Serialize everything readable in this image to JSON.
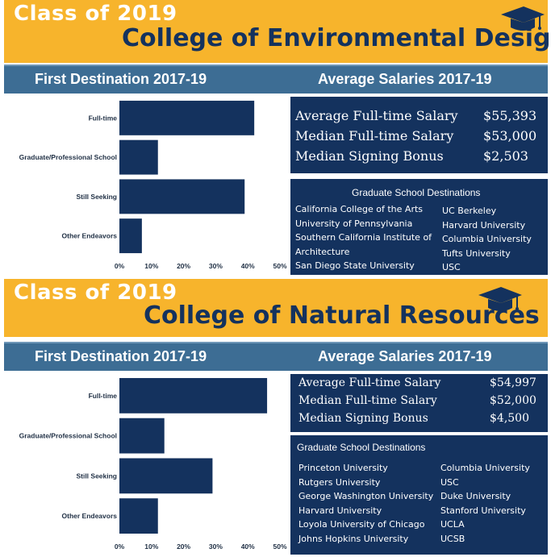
{
  "colors": {
    "banner": "#f7b42c",
    "header": "#3d6d94",
    "navy": "#14325e",
    "white": "#ffffff"
  },
  "panels": [
    {
      "class_of": "Class of 2019",
      "college": "College of Environmental Design",
      "first_destination_title": "First Destination 2017-19",
      "salaries_title": "Average Salaries 2017-19",
      "salaries": [
        {
          "label": "Average Full-time Salary",
          "value": "$55,393"
        },
        {
          "label": "Median Full-time Salary",
          "value": "$53,000"
        },
        {
          "label": "Median Signing Bonus",
          "value": "$2,503"
        }
      ],
      "grad_title": "Graduate School Destinations",
      "grad_col1": [
        "California College of the Arts",
        "University of  Pennsylvania",
        "Southern California Institute of",
        "Architecture",
        "San Diego State University"
      ],
      "grad_col2": [
        "UC Berkeley",
        "Harvard University",
        "Columbia University",
        "Tufts University",
        "USC"
      ]
    },
    {
      "class_of": "Class of 2019",
      "college": "College of Natural Resources",
      "first_destination_title": "First Destination 2017-19",
      "salaries_title": "Average Salaries 2017-19",
      "salaries": [
        {
          "label": "Average Full-time Salary",
          "value": "$54,997"
        },
        {
          "label": "Median Full-time Salary",
          "value": "$52,000"
        },
        {
          "label": "Median Signing Bonus",
          "value": "$4,500"
        }
      ],
      "grad_title": "Graduate School Destinations",
      "grad_col1": [
        "Princeton University",
        "Rutgers University",
        "George Washington University",
        "Harvard University",
        "Loyola University of Chicago",
        "Johns Hopkins University"
      ],
      "grad_col2": [
        "Columbia University",
        "USC",
        "Duke University",
        "Stanford University",
        "UCLA",
        "UCSB"
      ]
    }
  ],
  "chart_data": [
    {
      "type": "bar",
      "orientation": "horizontal",
      "categories": [
        "Full-time",
        "Graduate/Professional School",
        "Still Seeking",
        "Other Endeavors"
      ],
      "values": [
        42,
        12,
        39,
        7
      ],
      "xlim": [
        0,
        50
      ],
      "ticks": [
        "0%",
        "10%",
        "20%",
        "30%",
        "40%",
        "50%"
      ],
      "grid": false
    },
    {
      "type": "bar",
      "orientation": "horizontal",
      "categories": [
        "Full-time",
        "Graduate/Professional School",
        "Still Seeking",
        "Other Endeavors"
      ],
      "values": [
        46,
        14,
        29,
        12
      ],
      "xlim": [
        0,
        50
      ],
      "ticks": [
        "0%",
        "10%",
        "20%",
        "30%",
        "40%",
        "50%"
      ],
      "grid": false
    }
  ]
}
